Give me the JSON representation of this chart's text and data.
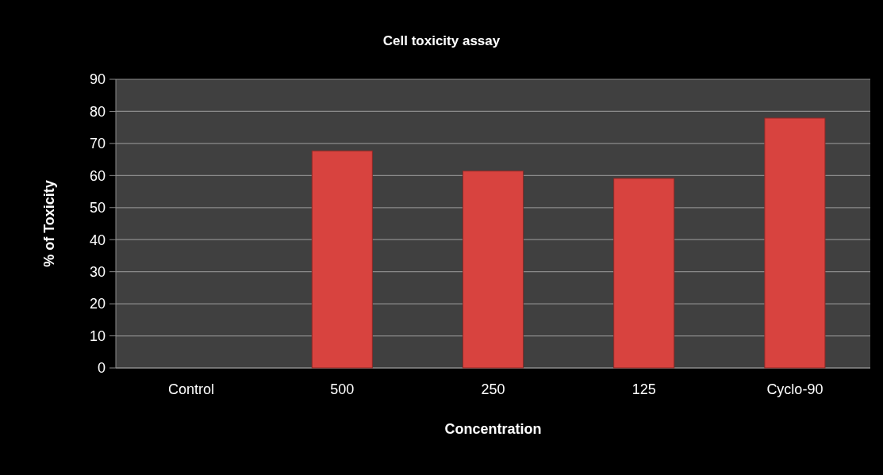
{
  "chart_data": {
    "type": "bar",
    "title": "Cell toxicity assay",
    "xlabel": "Concentration",
    "ylabel": "% of Toxicity",
    "categories": [
      "Control",
      "500",
      "250",
      "125",
      "Cyclo-90"
    ],
    "values": [
      0,
      67.7,
      61.4,
      59.1,
      77.9
    ],
    "color": "#d8433f",
    "ylim": [
      0,
      90
    ],
    "yticks": [
      0,
      10,
      20,
      30,
      40,
      50,
      60,
      70,
      80,
      90
    ],
    "grid": "y"
  }
}
